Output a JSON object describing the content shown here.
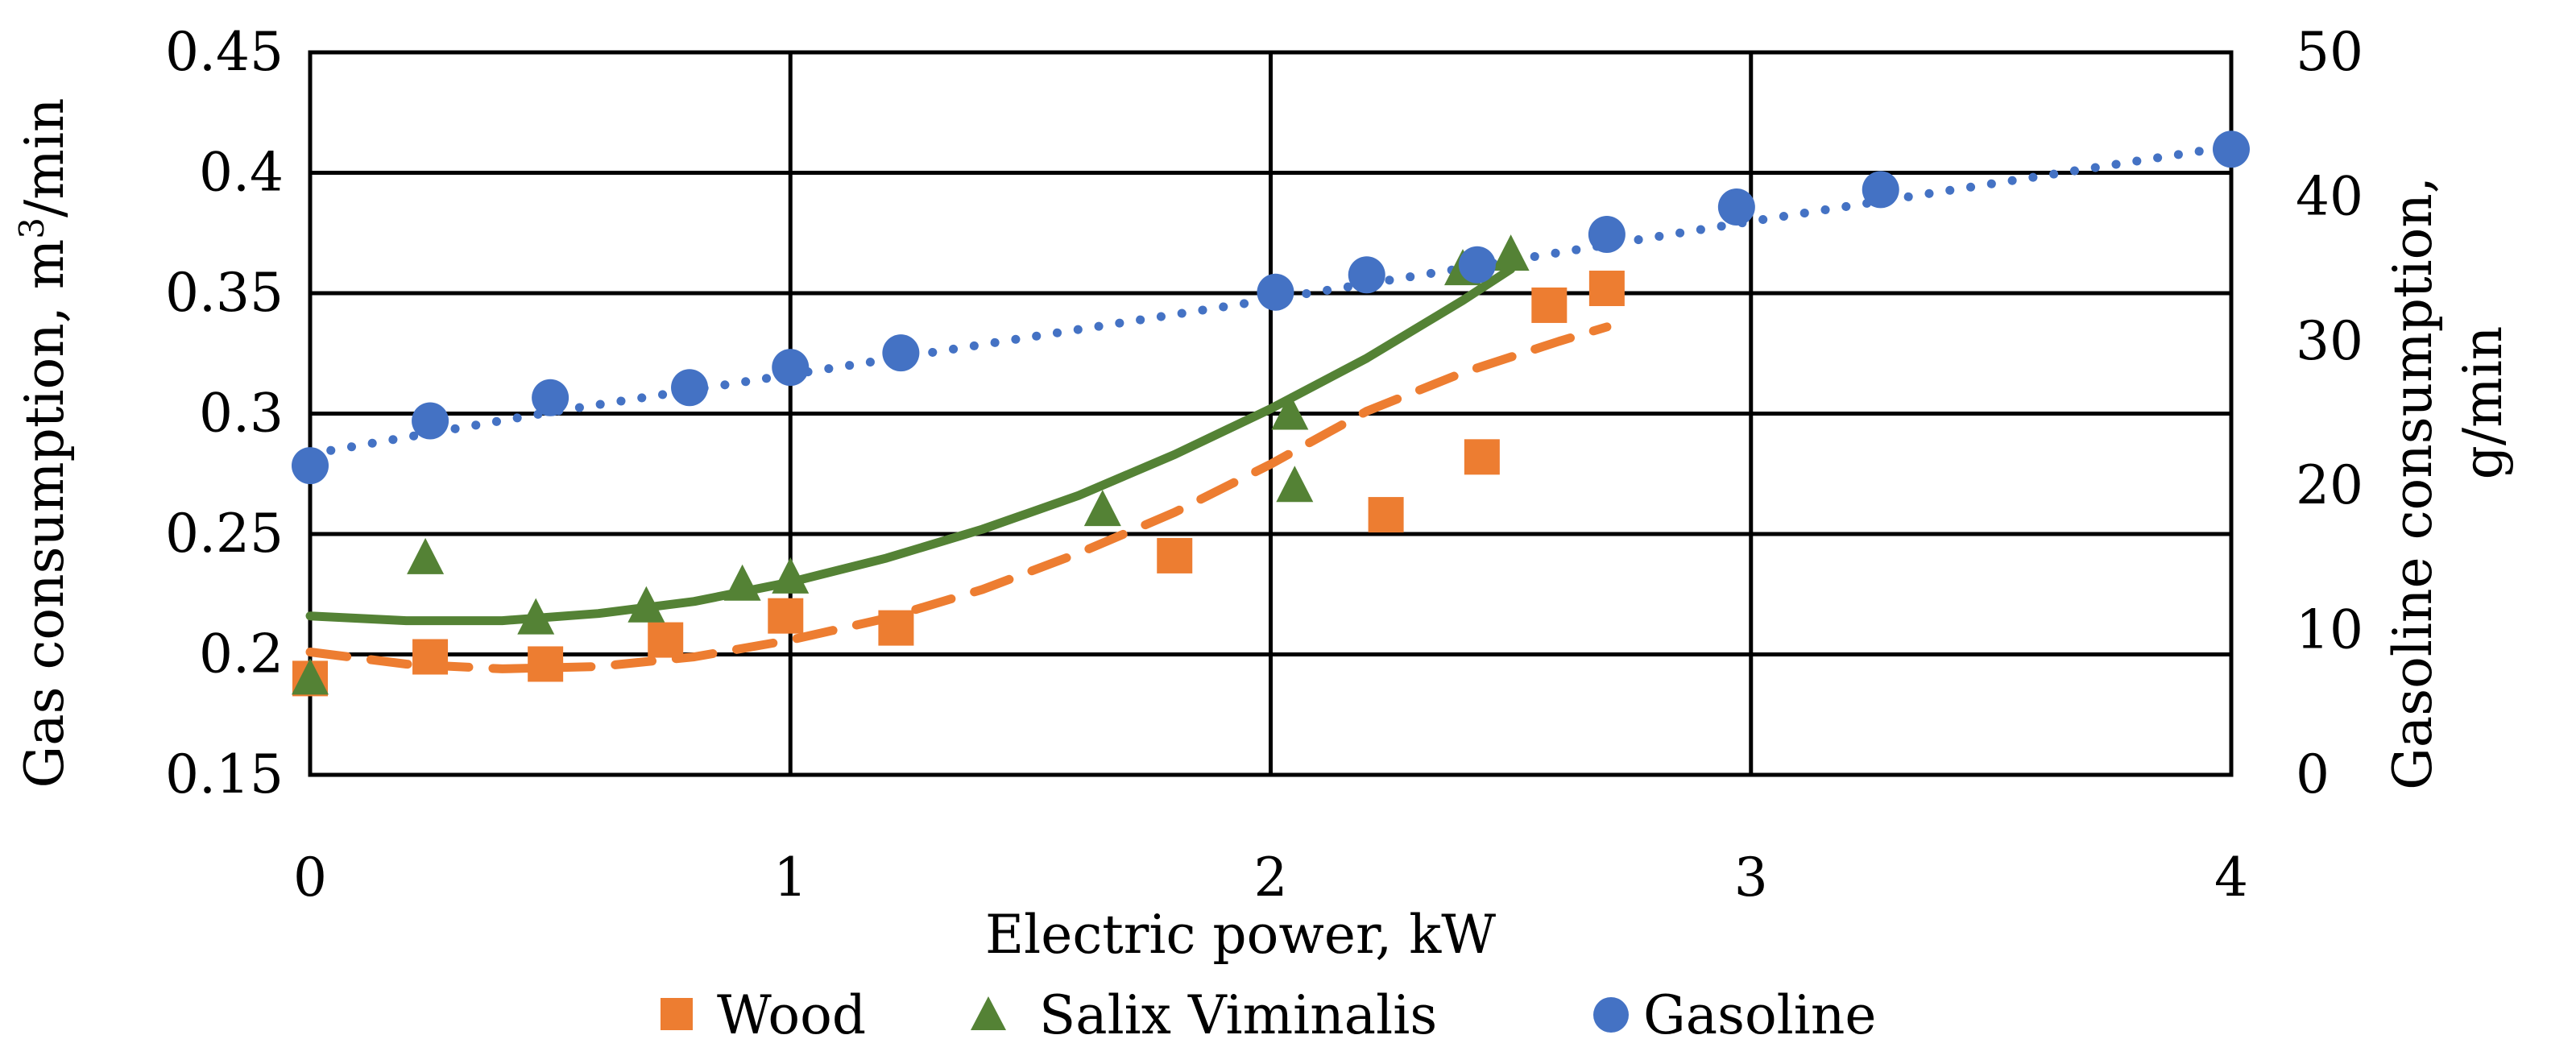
{
  "chart_data": {
    "type": "scatter",
    "xlabel": "Electric power, kW",
    "ylabel_left_prefix": "Gas consumption, m",
    "ylabel_left_sup": "3",
    "ylabel_left_suffix": "/min",
    "ylabel_right_line1": "Gasoline consumption,",
    "ylabel_right_line2": "g/min",
    "xlim": [
      0,
      4
    ],
    "ylim_left": [
      0.15,
      0.45
    ],
    "ylim_right": [
      0,
      50
    ],
    "x_ticks": [
      0,
      1,
      2,
      3,
      4
    ],
    "x_tick_labels": [
      "0",
      "1",
      "2",
      "3",
      "4"
    ],
    "y_left_ticks": [
      0.15,
      0.2,
      0.25,
      0.3,
      0.35,
      0.4,
      0.45
    ],
    "y_left_tick_labels": [
      "0.15",
      "0.2",
      "0.25",
      "0.3",
      "0.35",
      "0.4",
      "0.45"
    ],
    "y_right_ticks": [
      0,
      10,
      20,
      30,
      40,
      50
    ],
    "y_right_tick_labels": [
      "0",
      "10",
      "20",
      "30",
      "40",
      "50"
    ],
    "grid": true,
    "legend_position": "bottom",
    "series": [
      {
        "name": "Wood",
        "axis": "left",
        "marker": "square",
        "color": "#ED7D31",
        "trend": "dashed",
        "x": [
          0.0,
          0.25,
          0.49,
          0.74,
          0.99,
          1.22,
          1.8,
          2.24,
          2.44,
          2.58,
          2.7
        ],
        "y": [
          0.19,
          0.199,
          0.196,
          0.206,
          0.216,
          0.211,
          0.241,
          0.258,
          0.282,
          0.345,
          0.352
        ],
        "trend_x": [
          0.0,
          0.2,
          0.4,
          0.6,
          0.8,
          1.0,
          1.2,
          1.4,
          1.6,
          1.8,
          2.0,
          2.2,
          2.4,
          2.6,
          2.7
        ],
        "trend_y": [
          0.201,
          0.196,
          0.194,
          0.195,
          0.199,
          0.206,
          0.215,
          0.227,
          0.242,
          0.259,
          0.279,
          0.301,
          0.317,
          0.33,
          0.336
        ]
      },
      {
        "name": "Salix Viminalis",
        "axis": "left",
        "marker": "triangle",
        "color": "#548235",
        "trend": "solid",
        "x": [
          0.0,
          0.24,
          0.47,
          0.7,
          0.9,
          1.0,
          1.65,
          2.05,
          2.04,
          2.4,
          2.5
        ],
        "y": [
          0.19,
          0.24,
          0.215,
          0.22,
          0.229,
          0.232,
          0.26,
          0.27,
          0.3,
          0.36,
          0.366
        ],
        "trend_x": [
          0.0,
          0.2,
          0.4,
          0.6,
          0.8,
          1.0,
          1.2,
          1.4,
          1.6,
          1.8,
          2.0,
          2.2,
          2.4,
          2.5
        ],
        "trend_y": [
          0.216,
          0.214,
          0.214,
          0.217,
          0.222,
          0.23,
          0.24,
          0.252,
          0.266,
          0.283,
          0.302,
          0.323,
          0.347,
          0.36
        ]
      },
      {
        "name": "Gasoline",
        "axis": "right",
        "marker": "circle",
        "color": "#4472C4",
        "trend": "dotted",
        "x": [
          0.0,
          0.25,
          0.5,
          0.79,
          1.0,
          1.23,
          2.01,
          2.2,
          2.43,
          2.7,
          2.97,
          3.27,
          4.0
        ],
        "y": [
          21.4,
          24.5,
          26.1,
          26.8,
          28.2,
          29.2,
          33.4,
          34.6,
          35.3,
          37.4,
          39.3,
          40.5,
          43.3
        ],
        "trend_x": [
          0.0,
          0.5,
          1.0,
          1.5,
          2.0,
          2.5,
          3.0,
          3.5,
          4.0
        ],
        "trend_y": [
          22.2,
          25.1,
          27.7,
          30.3,
          32.9,
          35.6,
          38.3,
          40.9,
          43.5
        ]
      }
    ]
  }
}
